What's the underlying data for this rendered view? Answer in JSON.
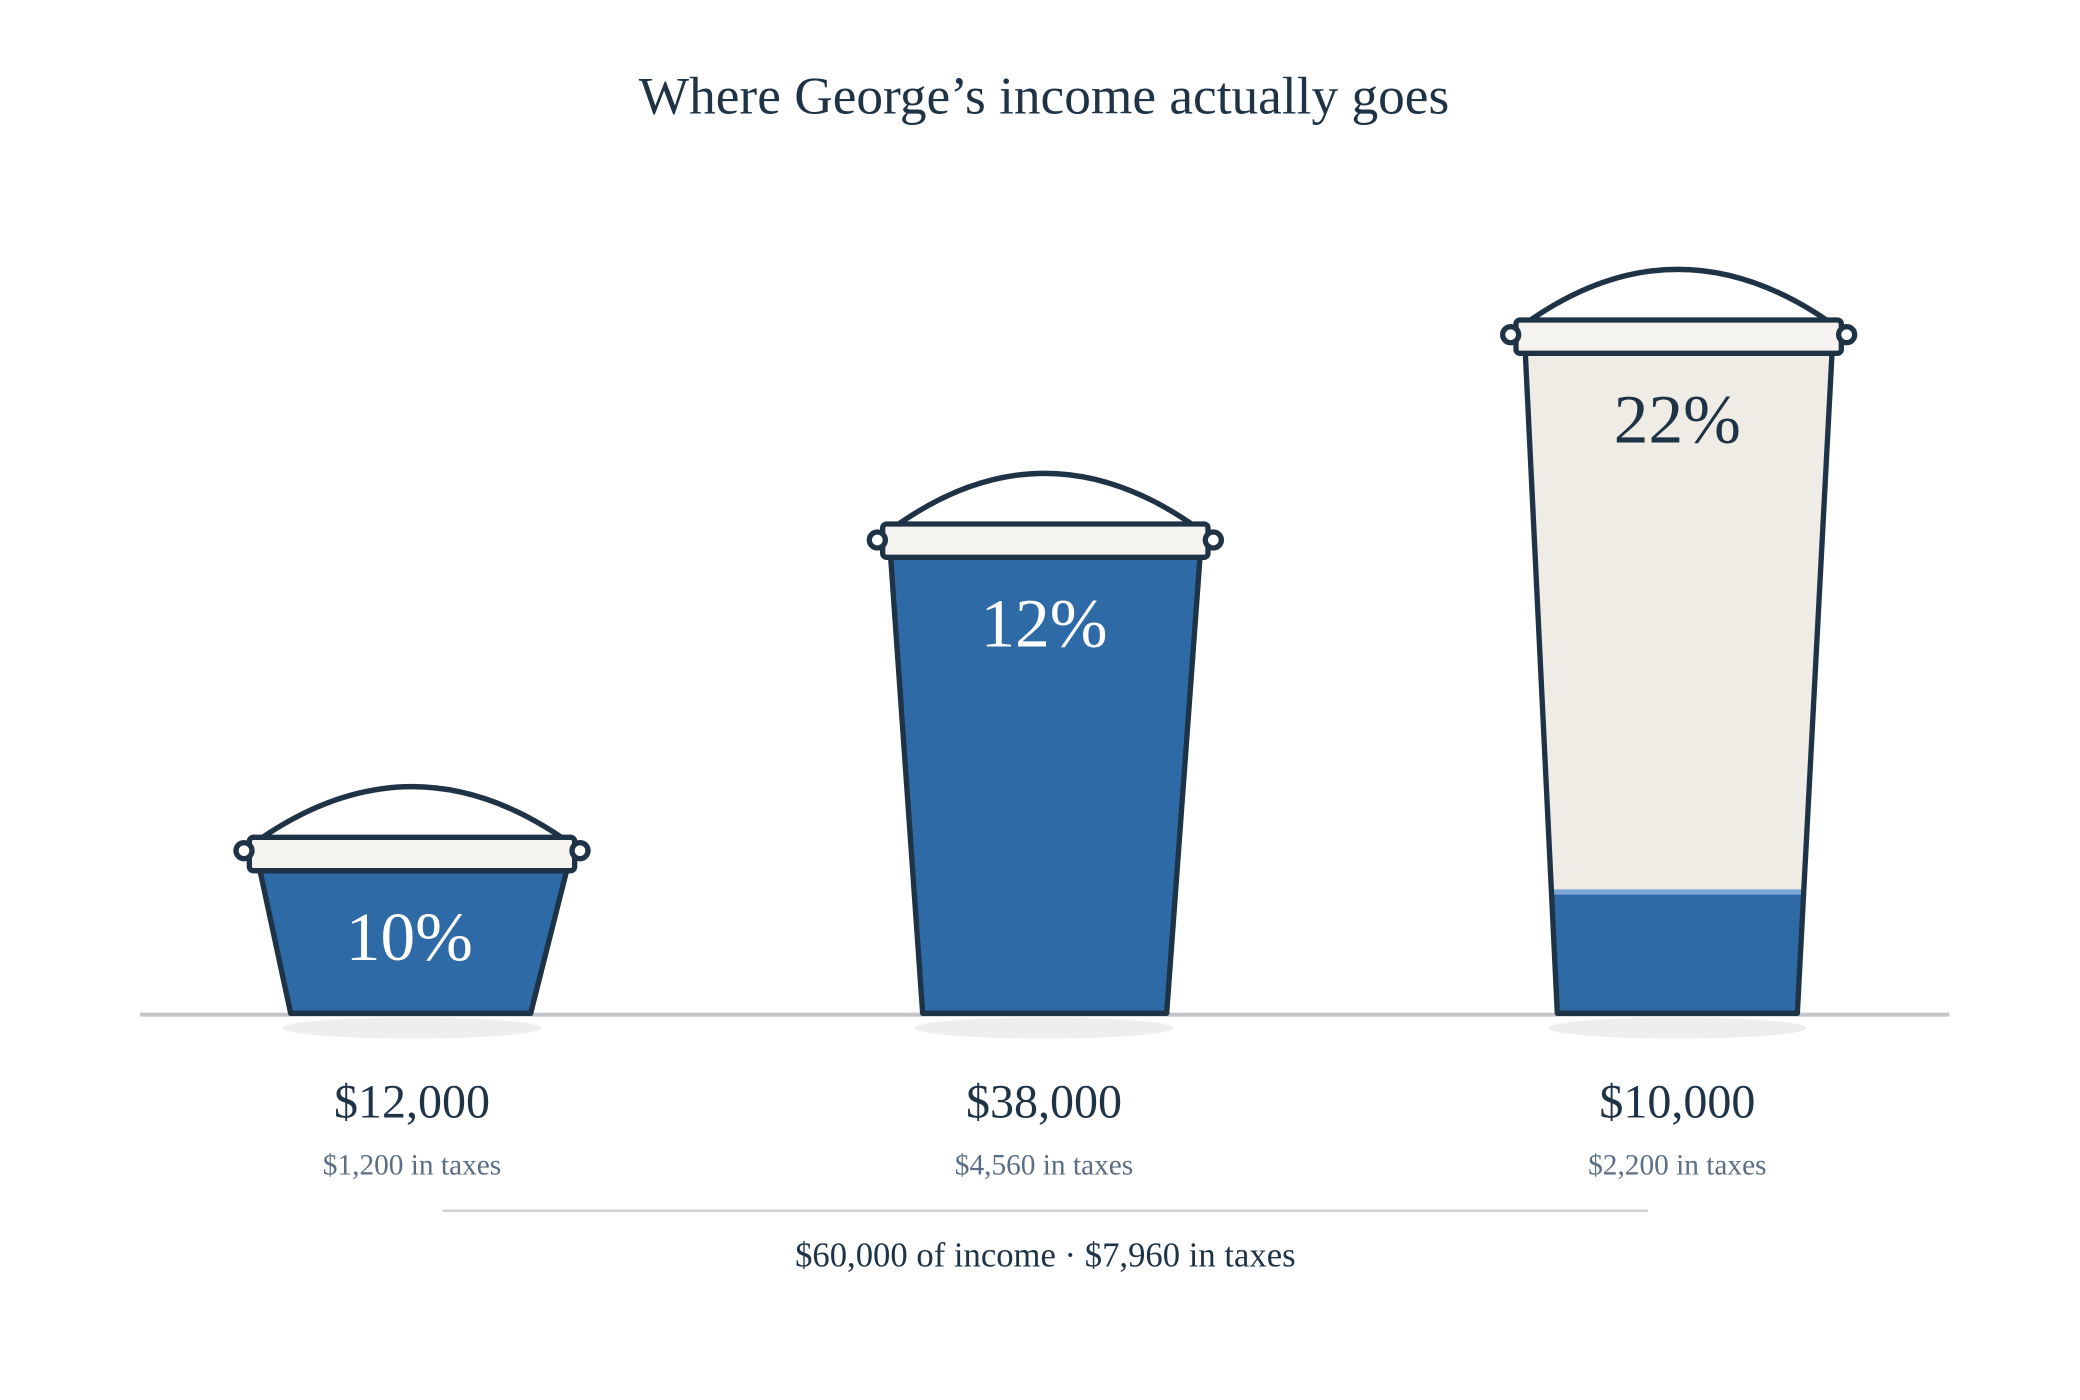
{
  "title": "Where George’s income actually goes",
  "buckets": [
    {
      "rate": "10%",
      "income": "$12,000",
      "taxes": "$1,200 in taxes"
    },
    {
      "rate": "12%",
      "income": "$38,000",
      "taxes": "$4,560 in taxes"
    },
    {
      "rate": "22%",
      "income": "$10,000",
      "taxes": "$2,200 in taxes"
    }
  ],
  "summary": "$60,000 of income · $7,960 in taxes"
}
